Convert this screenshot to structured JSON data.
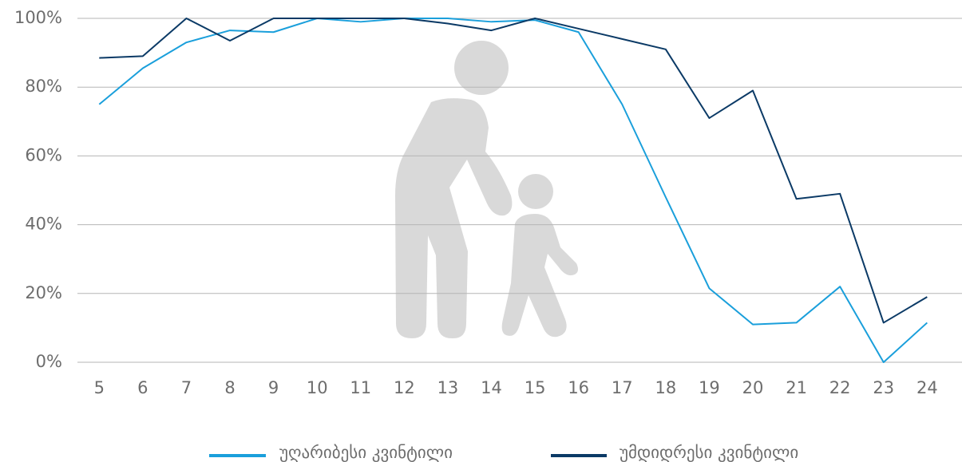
{
  "chart_data": {
    "type": "line",
    "x": [
      5,
      6,
      7,
      8,
      9,
      10,
      11,
      12,
      13,
      14,
      15,
      16,
      17,
      18,
      19,
      20,
      21,
      22,
      23,
      24
    ],
    "xlim": [
      4.5,
      24.8
    ],
    "series": [
      {
        "name": "უღარიბესი კვინტილი",
        "color": "#1a9fdb",
        "values": [
          75,
          85.5,
          93,
          96.5,
          96,
          100,
          99,
          100,
          100,
          99,
          99.5,
          96,
          75,
          48,
          21.5,
          11,
          11.5,
          22,
          0,
          11.5
        ]
      },
      {
        "name": "უმდიდრესი კვინტილი",
        "color": "#0b3a66",
        "values": [
          88.5,
          89,
          100,
          93.5,
          100,
          100,
          100,
          100,
          98.5,
          96.5,
          100,
          97,
          94,
          91,
          71,
          79,
          47.5,
          49,
          11.5,
          19
        ]
      }
    ],
    "ylim": [
      0,
      100
    ],
    "yticks": [
      {
        "value": 0,
        "label": "0%"
      },
      {
        "value": 20,
        "label": "20%"
      },
      {
        "value": 40,
        "label": "40%"
      },
      {
        "value": 60,
        "label": "60%"
      },
      {
        "value": 80,
        "label": "80%"
      },
      {
        "value": 100,
        "label": "100%"
      }
    ],
    "grid": true
  }
}
